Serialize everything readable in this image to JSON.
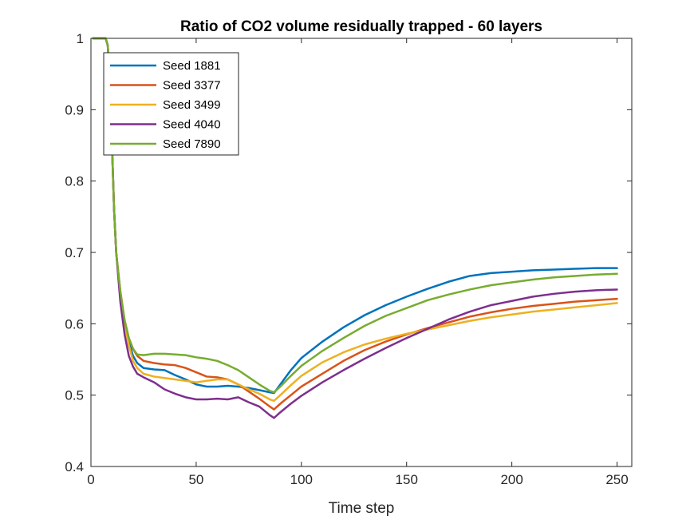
{
  "chart_data": {
    "type": "line",
    "title": "Ratio of CO2 volume residually trapped - 60 layers",
    "xlabel": "Time step",
    "ylabel": "",
    "xlim": [
      0,
      257
    ],
    "ylim": [
      0.4,
      1.0
    ],
    "xticks": [
      0,
      50,
      100,
      150,
      200,
      250
    ],
    "yticks": [
      0.4,
      0.5,
      0.6,
      0.7,
      0.8,
      0.9,
      1.0
    ],
    "xtick_labels": [
      "0",
      "50",
      "100",
      "150",
      "200",
      "250"
    ],
    "ytick_labels": [
      "0.4",
      "0.5",
      "0.6",
      "0.7",
      "0.8",
      "0.9",
      "1"
    ],
    "grid": false,
    "legend_position": "top-left",
    "series": [
      {
        "name": "Seed 1881",
        "color": "#0072BD",
        "points": [
          [
            1,
            1.0
          ],
          [
            7,
            1.0
          ],
          [
            8,
            0.99
          ],
          [
            9,
            0.93
          ],
          [
            10,
            0.85
          ],
          [
            11,
            0.76
          ],
          [
            12,
            0.7
          ],
          [
            14,
            0.64
          ],
          [
            16,
            0.6
          ],
          [
            18,
            0.575
          ],
          [
            20,
            0.555
          ],
          [
            22,
            0.545
          ],
          [
            25,
            0.538
          ],
          [
            30,
            0.536
          ],
          [
            35,
            0.535
          ],
          [
            40,
            0.528
          ],
          [
            45,
            0.522
          ],
          [
            50,
            0.515
          ],
          [
            55,
            0.512
          ],
          [
            60,
            0.512
          ],
          [
            65,
            0.513
          ],
          [
            70,
            0.512
          ],
          [
            75,
            0.51
          ],
          [
            80,
            0.507
          ],
          [
            85,
            0.504
          ],
          [
            87,
            0.503
          ],
          [
            90,
            0.515
          ],
          [
            95,
            0.535
          ],
          [
            100,
            0.552
          ],
          [
            110,
            0.575
          ],
          [
            120,
            0.595
          ],
          [
            130,
            0.612
          ],
          [
            140,
            0.626
          ],
          [
            150,
            0.638
          ],
          [
            160,
            0.649
          ],
          [
            170,
            0.659
          ],
          [
            180,
            0.667
          ],
          [
            190,
            0.671
          ],
          [
            200,
            0.673
          ],
          [
            210,
            0.675
          ],
          [
            220,
            0.676
          ],
          [
            230,
            0.677
          ],
          [
            240,
            0.678
          ],
          [
            250,
            0.678
          ]
        ]
      },
      {
        "name": "Seed 3377",
        "color": "#D95319",
        "points": [
          [
            1,
            1.0
          ],
          [
            7,
            1.0
          ],
          [
            8,
            0.99
          ],
          [
            9,
            0.93
          ],
          [
            10,
            0.85
          ],
          [
            11,
            0.76
          ],
          [
            12,
            0.7
          ],
          [
            14,
            0.645
          ],
          [
            16,
            0.605
          ],
          [
            18,
            0.58
          ],
          [
            20,
            0.565
          ],
          [
            22,
            0.555
          ],
          [
            25,
            0.548
          ],
          [
            30,
            0.545
          ],
          [
            35,
            0.543
          ],
          [
            40,
            0.542
          ],
          [
            45,
            0.538
          ],
          [
            50,
            0.532
          ],
          [
            55,
            0.526
          ],
          [
            60,
            0.525
          ],
          [
            65,
            0.522
          ],
          [
            70,
            0.515
          ],
          [
            75,
            0.505
          ],
          [
            80,
            0.495
          ],
          [
            85,
            0.484
          ],
          [
            87,
            0.48
          ],
          [
            90,
            0.488
          ],
          [
            95,
            0.5
          ],
          [
            100,
            0.512
          ],
          [
            110,
            0.53
          ],
          [
            120,
            0.548
          ],
          [
            130,
            0.563
          ],
          [
            140,
            0.575
          ],
          [
            150,
            0.585
          ],
          [
            160,
            0.594
          ],
          [
            170,
            0.602
          ],
          [
            180,
            0.61
          ],
          [
            190,
            0.616
          ],
          [
            200,
            0.621
          ],
          [
            210,
            0.625
          ],
          [
            220,
            0.628
          ],
          [
            230,
            0.631
          ],
          [
            240,
            0.633
          ],
          [
            250,
            0.635
          ]
        ]
      },
      {
        "name": "Seed 3499",
        "color": "#EDB120",
        "points": [
          [
            1,
            1.0
          ],
          [
            7,
            1.0
          ],
          [
            8,
            0.99
          ],
          [
            9,
            0.93
          ],
          [
            10,
            0.85
          ],
          [
            11,
            0.76
          ],
          [
            12,
            0.7
          ],
          [
            14,
            0.64
          ],
          [
            16,
            0.6
          ],
          [
            18,
            0.57
          ],
          [
            20,
            0.548
          ],
          [
            22,
            0.538
          ],
          [
            25,
            0.53
          ],
          [
            30,
            0.526
          ],
          [
            35,
            0.524
          ],
          [
            40,
            0.522
          ],
          [
            45,
            0.52
          ],
          [
            50,
            0.518
          ],
          [
            55,
            0.52
          ],
          [
            60,
            0.522
          ],
          [
            65,
            0.522
          ],
          [
            70,
            0.515
          ],
          [
            75,
            0.508
          ],
          [
            80,
            0.502
          ],
          [
            85,
            0.494
          ],
          [
            87,
            0.492
          ],
          [
            90,
            0.5
          ],
          [
            95,
            0.514
          ],
          [
            100,
            0.527
          ],
          [
            110,
            0.546
          ],
          [
            120,
            0.56
          ],
          [
            130,
            0.571
          ],
          [
            140,
            0.579
          ],
          [
            150,
            0.586
          ],
          [
            160,
            0.592
          ],
          [
            170,
            0.598
          ],
          [
            180,
            0.604
          ],
          [
            190,
            0.609
          ],
          [
            200,
            0.613
          ],
          [
            210,
            0.617
          ],
          [
            220,
            0.62
          ],
          [
            230,
            0.623
          ],
          [
            240,
            0.626
          ],
          [
            250,
            0.629
          ]
        ]
      },
      {
        "name": "Seed 4040",
        "color": "#7E2F8E",
        "points": [
          [
            1,
            1.0
          ],
          [
            7,
            1.0
          ],
          [
            8,
            0.99
          ],
          [
            9,
            0.93
          ],
          [
            10,
            0.85
          ],
          [
            11,
            0.76
          ],
          [
            12,
            0.7
          ],
          [
            14,
            0.63
          ],
          [
            16,
            0.585
          ],
          [
            18,
            0.555
          ],
          [
            20,
            0.54
          ],
          [
            22,
            0.53
          ],
          [
            25,
            0.525
          ],
          [
            30,
            0.518
          ],
          [
            35,
            0.508
          ],
          [
            40,
            0.502
          ],
          [
            45,
            0.497
          ],
          [
            50,
            0.494
          ],
          [
            55,
            0.494
          ],
          [
            60,
            0.495
          ],
          [
            65,
            0.494
          ],
          [
            70,
            0.497
          ],
          [
            75,
            0.49
          ],
          [
            80,
            0.484
          ],
          [
            85,
            0.472
          ],
          [
            87,
            0.468
          ],
          [
            90,
            0.476
          ],
          [
            95,
            0.488
          ],
          [
            100,
            0.499
          ],
          [
            110,
            0.518
          ],
          [
            120,
            0.535
          ],
          [
            130,
            0.551
          ],
          [
            140,
            0.566
          ],
          [
            150,
            0.58
          ],
          [
            160,
            0.593
          ],
          [
            170,
            0.606
          ],
          [
            180,
            0.617
          ],
          [
            190,
            0.626
          ],
          [
            200,
            0.632
          ],
          [
            210,
            0.638
          ],
          [
            220,
            0.642
          ],
          [
            230,
            0.645
          ],
          [
            240,
            0.647
          ],
          [
            250,
            0.648
          ]
        ]
      },
      {
        "name": "Seed 7890",
        "color": "#77AC30",
        "points": [
          [
            1,
            1.0
          ],
          [
            7,
            1.0
          ],
          [
            8,
            0.99
          ],
          [
            9,
            0.93
          ],
          [
            10,
            0.85
          ],
          [
            11,
            0.76
          ],
          [
            12,
            0.7
          ],
          [
            14,
            0.645
          ],
          [
            16,
            0.605
          ],
          [
            18,
            0.58
          ],
          [
            20,
            0.565
          ],
          [
            22,
            0.557
          ],
          [
            25,
            0.556
          ],
          [
            30,
            0.558
          ],
          [
            35,
            0.558
          ],
          [
            40,
            0.557
          ],
          [
            45,
            0.556
          ],
          [
            50,
            0.553
          ],
          [
            55,
            0.551
          ],
          [
            60,
            0.548
          ],
          [
            65,
            0.542
          ],
          [
            70,
            0.535
          ],
          [
            75,
            0.525
          ],
          [
            80,
            0.515
          ],
          [
            85,
            0.506
          ],
          [
            87,
            0.504
          ],
          [
            90,
            0.512
          ],
          [
            95,
            0.527
          ],
          [
            100,
            0.541
          ],
          [
            110,
            0.562
          ],
          [
            120,
            0.58
          ],
          [
            130,
            0.597
          ],
          [
            140,
            0.611
          ],
          [
            150,
            0.622
          ],
          [
            160,
            0.633
          ],
          [
            170,
            0.641
          ],
          [
            180,
            0.648
          ],
          [
            190,
            0.654
          ],
          [
            200,
            0.658
          ],
          [
            210,
            0.662
          ],
          [
            220,
            0.665
          ],
          [
            230,
            0.667
          ],
          [
            240,
            0.669
          ],
          [
            250,
            0.67
          ]
        ]
      }
    ]
  }
}
